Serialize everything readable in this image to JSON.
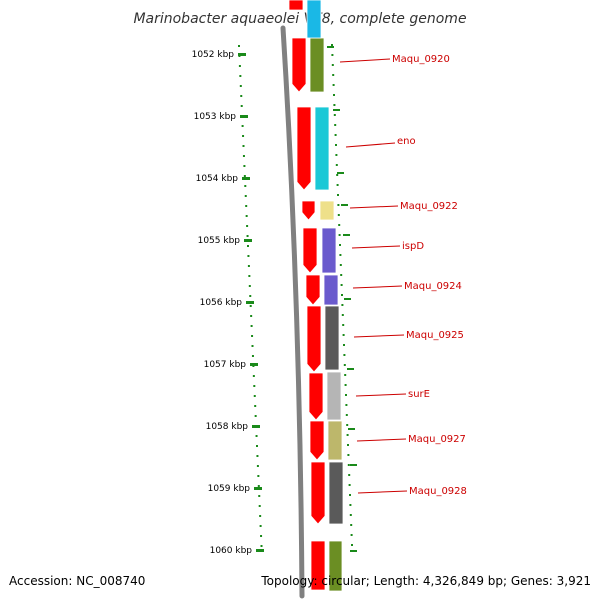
{
  "title": "Marinobacter aquaeolei VT8, complete genome",
  "footer": {
    "accession": "Accession: NC_008740",
    "summary": "Topology: circular; Length: 4,326,849 bp; Genes: 3,921"
  },
  "axis_labels": [
    "1052 kbp",
    "1053 kbp",
    "1054 kbp",
    "1055 kbp",
    "1056 kbp",
    "1057 kbp",
    "1058 kbp",
    "1059 kbp",
    "1060 kbp"
  ],
  "genes": [
    {
      "name": "Maqu_0920",
      "color": "#6b8e23"
    },
    {
      "name": "eno",
      "color": "#1ac8d6"
    },
    {
      "name": "Maqu_0922",
      "color": "#eee08a"
    },
    {
      "name": "ispD",
      "color": "#6a5acd"
    },
    {
      "name": "Maqu_0924",
      "color": "#6a5acd"
    },
    {
      "name": "Maqu_0925",
      "color": "#5a5a5a"
    },
    {
      "name": "surE",
      "color": "#b5b5b5"
    },
    {
      "name": "Maqu_0927",
      "color": "#bdb76b"
    },
    {
      "name": "Maqu_0928",
      "color": "#5a5a5a"
    }
  ],
  "colors": {
    "cds": "#ff0000",
    "backbone": "#808080",
    "ticks": "#1a8a1a",
    "label": "#cc0000"
  }
}
